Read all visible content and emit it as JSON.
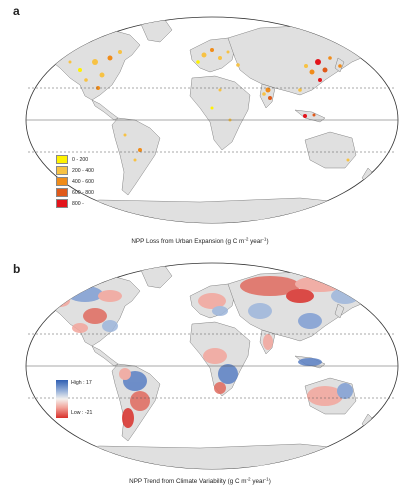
{
  "panel_a": {
    "letter": "a",
    "caption": "NPP Loss from Urban Expansion (g C m",
    "caption_sup1": "-2",
    "caption_mid": " year",
    "caption_sup2": "-1",
    "caption_end": ")",
    "legend": [
      {
        "label": "0 - 200",
        "color": "#fff200"
      },
      {
        "label": "200 - 400",
        "color": "#f7c244"
      },
      {
        "label": "400 - 600",
        "color": "#f08c1a"
      },
      {
        "label": "600 - 800",
        "color": "#e05a1a"
      },
      {
        "label": "800 -",
        "color": "#e3141b"
      }
    ]
  },
  "panel_b": {
    "letter": "b",
    "caption": "NPP Trend from Climate Variability (g C m",
    "caption_sup1": "-2",
    "caption_mid": " year",
    "caption_sup2": "-1",
    "caption_end": ")",
    "legend_high": "High : 17",
    "legend_low": "Low : -21",
    "high_color": "#2f5fb3",
    "low_color": "#d9302b"
  },
  "colors": {
    "land": "#e0e0e0",
    "ocean": "#ffffff",
    "outline": "#333333",
    "graticule": "#555555"
  }
}
